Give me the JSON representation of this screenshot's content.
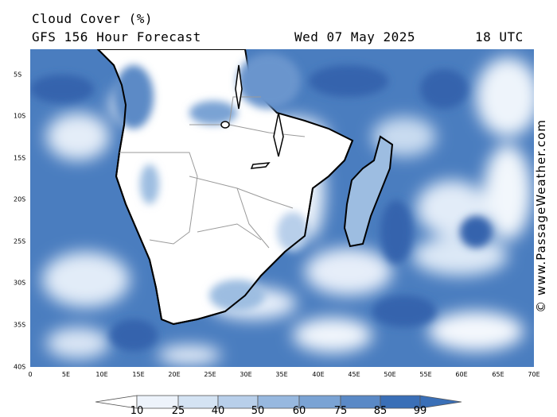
{
  "header": {
    "title": "Cloud Cover (%)",
    "subtitle": "GFS 156 Hour Forecast",
    "valid_date": "Wed 07 May 2025",
    "valid_time": "18 UTC"
  },
  "watermark": "© www.PassageWeather.com",
  "map": {
    "region": "Southern Africa and Madagascar",
    "lat_labels": [
      "5S",
      "10S",
      "15S",
      "20S",
      "25S",
      "30S",
      "35S",
      "40S"
    ],
    "lon_labels": [
      "0",
      "5E",
      "10E",
      "15E",
      "20E",
      "25E",
      "30E",
      "35E",
      "40E",
      "45E",
      "50E",
      "55E",
      "60E",
      "65E",
      "70E"
    ]
  },
  "legend": {
    "values": [
      "10",
      "25",
      "40",
      "50",
      "60",
      "75",
      "85",
      "99"
    ],
    "colors": [
      "#ffffff",
      "#edf3fb",
      "#d4e3f3",
      "#b8cfea",
      "#97b8df",
      "#7aa3d4",
      "#5a89c6",
      "#3a6fb7"
    ]
  }
}
